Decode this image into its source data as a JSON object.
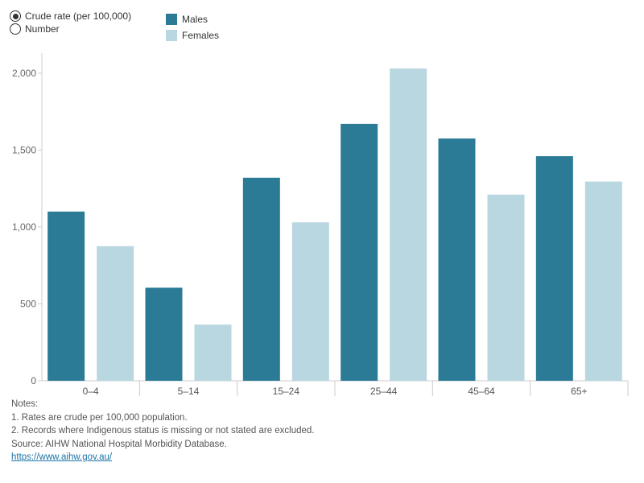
{
  "controls": {
    "options": [
      {
        "label": "Crude rate (per 100,000)",
        "selected": true
      },
      {
        "label": "Number",
        "selected": false
      }
    ]
  },
  "legend": [
    {
      "label": "Males",
      "color": "#2b7b97"
    },
    {
      "label": "Females",
      "color": "#b8d7e0"
    }
  ],
  "notes": {
    "heading": "Notes:",
    "line1": "1. Rates are crude per 100,000 population.",
    "line2": "2. Records where Indigenous status is missing or not stated are excluded.",
    "source": "Source: AIHW National Hospital Morbidity Database.",
    "link": "https://www.aihw.gov.au/"
  },
  "chart_data": {
    "type": "bar",
    "categories": [
      "0–4",
      "5–14",
      "15–24",
      "25–44",
      "45–64",
      "65+"
    ],
    "series": [
      {
        "name": "Males",
        "color": "#2b7b97",
        "values": [
          1100,
          605,
          1320,
          1670,
          1575,
          1460
        ]
      },
      {
        "name": "Females",
        "color": "#b8d7e0",
        "values": [
          875,
          365,
          1030,
          2030,
          1210,
          1295
        ]
      }
    ],
    "yticks": [
      0,
      500,
      1000,
      1500,
      2000
    ],
    "ytick_labels": [
      "0",
      "500",
      "1,000",
      "1,500",
      "2,000"
    ],
    "ylim": [
      0,
      2130
    ],
    "grid": false,
    "legend_position": "top-left"
  }
}
